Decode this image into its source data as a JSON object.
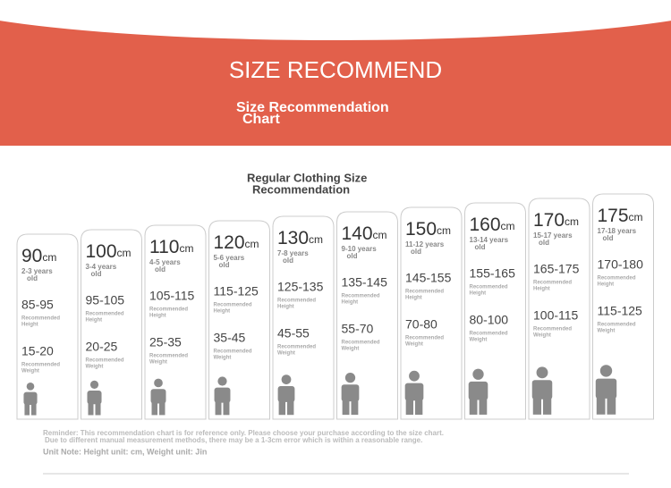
{
  "header": {
    "title": "SIZE RECOMMEND",
    "subtitle": [
      "Size Recommendation",
      "Chart"
    ]
  },
  "section_title": [
    "Regular Clothing Size",
    "Recommendation"
  ],
  "cards": [
    {
      "size": "90",
      "unit": "cm",
      "age": [
        "2-3 years",
        "old"
      ],
      "height": "85-95",
      "height_label": [
        "Recommended",
        "Height"
      ],
      "weight": "15-20",
      "weight_label": [
        "Recommended",
        "Weight"
      ]
    },
    {
      "size": "100",
      "unit": "cm",
      "age": [
        "3-4 years",
        "old"
      ],
      "height": "95-105",
      "height_label": [
        "Recommended",
        "Height"
      ],
      "weight": "20-25",
      "weight_label": [
        "Recommended",
        "Weight"
      ]
    },
    {
      "size": "110",
      "unit": "cm",
      "age": [
        "4-5 years",
        "old"
      ],
      "height": "105-115",
      "height_label": [
        "Recommended",
        "Height"
      ],
      "weight": "25-35",
      "weight_label": [
        "Recommended",
        "Weight"
      ]
    },
    {
      "size": "120",
      "unit": "cm",
      "age": [
        "5-6 years",
        "old"
      ],
      "height": "115-125",
      "height_label": [
        "Recommended",
        "Height"
      ],
      "weight": "35-45",
      "weight_label": [
        "Recommended",
        "Weight"
      ]
    },
    {
      "size": "130",
      "unit": "cm",
      "age": [
        "7-8 years",
        "old"
      ],
      "height": "125-135",
      "height_label": [
        "Recommended",
        "Height"
      ],
      "weight": "45-55",
      "weight_label": [
        "Recommended",
        "Weight"
      ]
    },
    {
      "size": "140",
      "unit": "cm",
      "age": [
        "9-10 years",
        "old"
      ],
      "height": "135-145",
      "height_label": [
        "Recommended",
        "Height"
      ],
      "weight": "55-70",
      "weight_label": [
        "Recommended",
        "Weight"
      ]
    },
    {
      "size": "150",
      "unit": "cm",
      "age": [
        "11-12 years",
        "old"
      ],
      "height": "145-155",
      "height_label": [
        "Recommended",
        "Height"
      ],
      "weight": "70-80",
      "weight_label": [
        "Recommended",
        "Weight"
      ]
    },
    {
      "size": "160",
      "unit": "cm",
      "age": [
        "13-14 years",
        "old"
      ],
      "height": "155-165",
      "height_label": [
        "Recommended",
        "Height"
      ],
      "weight": "80-100",
      "weight_label": [
        "Recommended",
        "Weight"
      ]
    },
    {
      "size": "170",
      "unit": "cm",
      "age": [
        "15-17 years",
        "old"
      ],
      "height": "165-175",
      "height_label": [
        "Recommended",
        "Height"
      ],
      "weight": "100-115",
      "weight_label": [
        "Recommended",
        "Weight"
      ]
    },
    {
      "size": "175",
      "unit": "cm",
      "age": [
        "17-18 years",
        "old"
      ],
      "height": "170-180",
      "height_label": [
        "Recommended",
        "Height"
      ],
      "weight": "115-125",
      "weight_label": [
        "Recommended",
        "Weight"
      ]
    }
  ],
  "footer": {
    "reminder": [
      "Reminder: This recommendation chart is for reference only. Please choose your purchase according to the size chart.",
      "Due to different manual measurement methods, there may be a 1-3cm error which is within a reasonable range."
    ],
    "unit_note": "Unit Note: Height unit: cm, Weight unit: Jin"
  }
}
